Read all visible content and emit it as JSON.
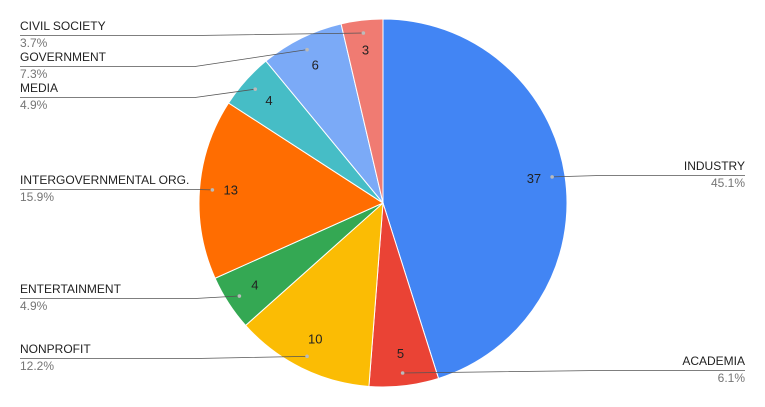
{
  "chart_data": {
    "type": "pie",
    "categories": [
      "INDUSTRY",
      "ACADEMIA",
      "NONPROFIT",
      "ENTERTAINMENT",
      "INTERGOVERNMENTAL ORG.",
      "MEDIA",
      "GOVERNMENT",
      "CIVIL SOCIETY"
    ],
    "values": [
      37,
      5,
      10,
      4,
      13,
      4,
      6,
      3
    ],
    "percent_labels": [
      "45.1%",
      "6.1%",
      "12.2%",
      "4.9%",
      "15.9%",
      "4.9%",
      "7.3%",
      "3.7%"
    ],
    "colors": [
      "#4285f4",
      "#ea4335",
      "#fbbc04",
      "#34a853",
      "#ff6d01",
      "#46bdc6",
      "#7baaf7",
      "#f07b72"
    ]
  }
}
